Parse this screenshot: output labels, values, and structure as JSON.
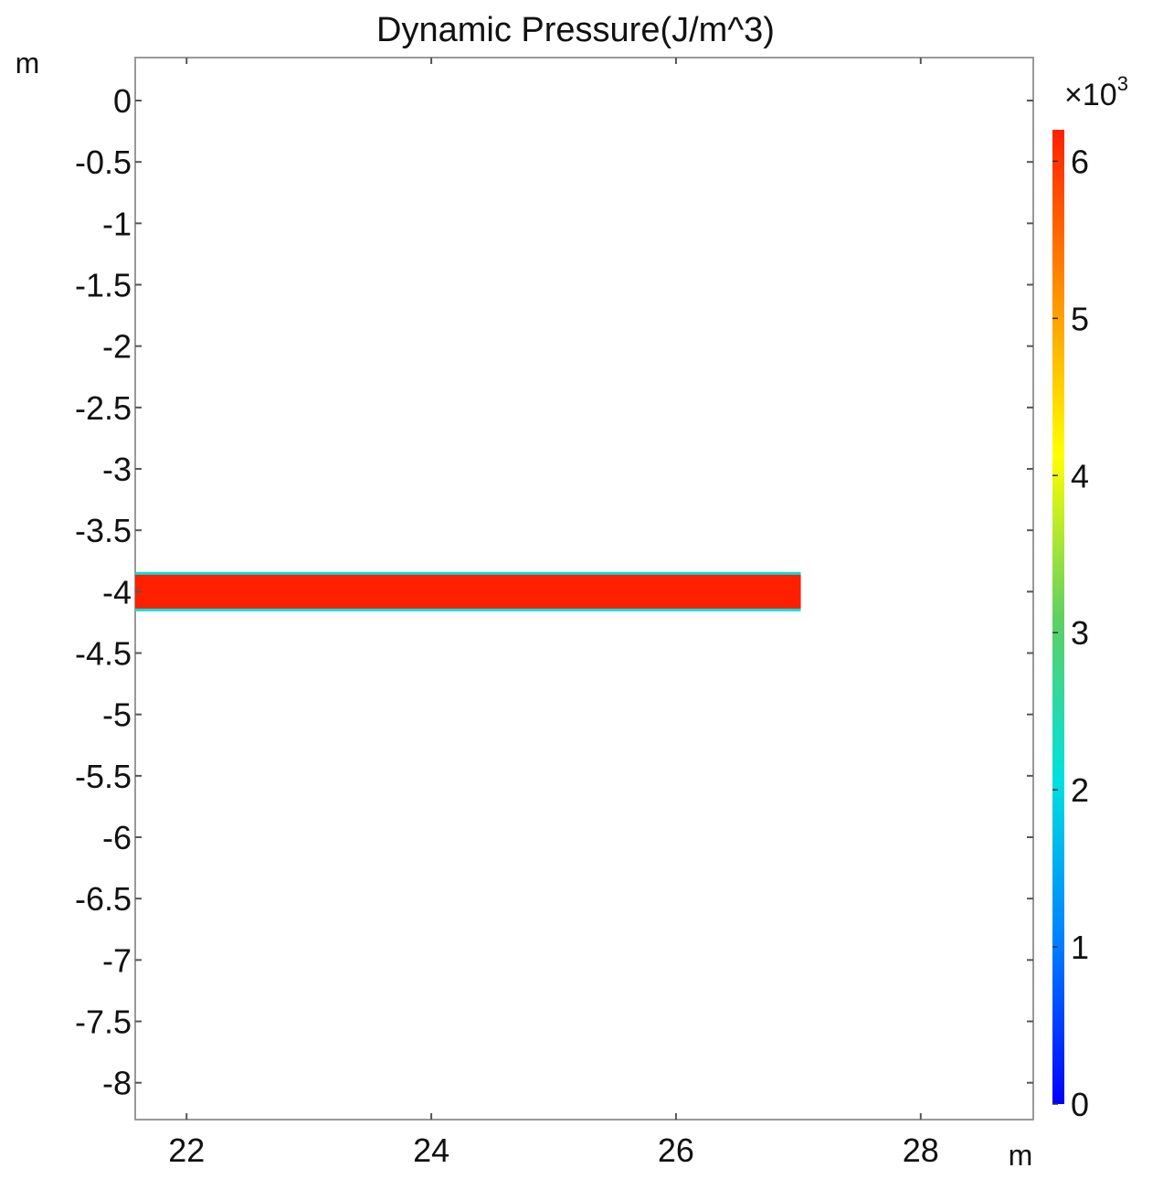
{
  "chart_data": {
    "type": "heatmap",
    "title": "Dynamic Pressure(J/m^3)",
    "xlabel": "m",
    "ylabel": "m",
    "xlim": [
      21.58,
      28.92
    ],
    "ylim": [
      -8.3,
      0.35
    ],
    "x_ticks": [
      22,
      24,
      26,
      28
    ],
    "x_tick_labels": [
      "22",
      "24",
      "26",
      "28"
    ],
    "y_ticks": [
      0,
      -0.5,
      -1,
      -1.5,
      -2,
      -2.5,
      -3,
      -3.5,
      -4,
      -4.5,
      -5,
      -5.5,
      -6,
      -6.5,
      -7,
      -7.5,
      -8
    ],
    "y_tick_labels": [
      "0",
      "-0.5",
      "-1",
      "-1.5",
      "-2",
      "-2.5",
      "-3",
      "-3.5",
      "-4",
      "-4.5",
      "-5",
      "-5.5",
      "-6",
      "-6.5",
      "-7",
      "-7.5",
      "-8"
    ],
    "grid": false,
    "regions": [
      {
        "x_range": [
          21.58,
          27.02
        ],
        "y_range": [
          -4.16,
          -3.84
        ],
        "core_value": 6000,
        "edge_value": 2000
      }
    ],
    "colorbar": {
      "range": [
        0,
        6200
      ],
      "multiplier_base": "×10",
      "multiplier_exponent": "3",
      "ticks": [
        0,
        1,
        2,
        3,
        4,
        5,
        6
      ],
      "tick_labels": [
        "0",
        "1",
        "2",
        "3",
        "4",
        "5",
        "6"
      ],
      "colormap": "jet",
      "colors": [
        "#0000ff",
        "#0080ff",
        "#00e0e0",
        "#60d060",
        "#ffff00",
        "#ff9000",
        "#ff2000"
      ]
    }
  }
}
